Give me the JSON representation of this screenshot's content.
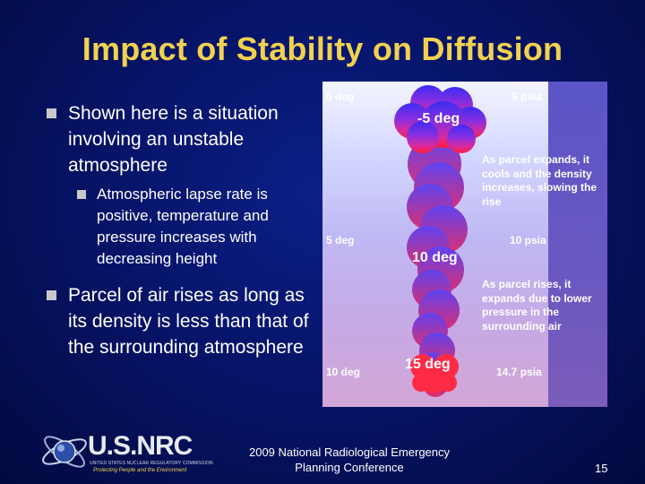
{
  "slide": {
    "title": "Impact of Stability on Diffusion",
    "bullets": [
      {
        "text": "Shown here is a situation involving an unstable atmosphere"
      },
      {
        "text": "Parcel of air rises as long as its density is less than that of the surrounding atmosphere"
      }
    ],
    "sub_bullet": "Atmospheric lapse rate is positive, temperature and pressure increases with decreasing height"
  },
  "figure": {
    "top_left": "0 deg",
    "top_right": "5 psia",
    "parcel_top": "-5 deg",
    "mid_left": "5 deg",
    "mid_right": "10 psia",
    "parcel_mid": "10 deg",
    "bottom_left": "10 deg",
    "bottom_right": "14.7 psia",
    "parcel_bottom": "15 deg",
    "note_upper": "As parcel expands, it cools and the density increases, slowing the rise",
    "note_lower": "As parcel rises, it expands due to lower pressure in the surrounding air",
    "colors": {
      "top": "#3d2df2",
      "bottom": "#ff1d3a"
    }
  },
  "footer": {
    "conference_line1": "2009 National Radiological Emergency",
    "conference_line2": "Planning Conference",
    "page_number": "15"
  },
  "logo": {
    "name": "U.S.NRC",
    "subtitle": "UNITED STATES NUCLEAR REGULATORY COMMISSION",
    "tagline": "Protecting People and the Environment"
  }
}
